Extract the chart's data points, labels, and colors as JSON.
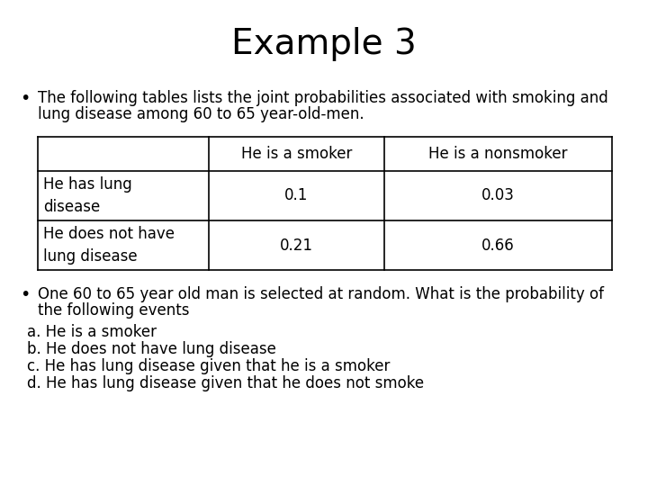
{
  "title": "Example 3",
  "title_fontsize": 28,
  "background_color": "#ffffff",
  "bullet1_line1": "The following tables lists the joint probabilities associated with smoking and",
  "bullet1_line2": "lung disease among 60 to 65 year-old-men.",
  "table": {
    "col_headers": [
      "",
      "He is a smoker",
      "He is a nonsmoker"
    ],
    "rows": [
      [
        "He has lung\ndisease",
        "0.1",
        "0.03"
      ],
      [
        "He does not have\nlung disease",
        "0.21",
        "0.66"
      ]
    ]
  },
  "bullet2_line1": "One 60 to 65 year old man is selected at random. What is the probability of",
  "bullet2_line2": "the following events",
  "items": [
    "a. He is a smoker",
    "b. He does not have lung disease",
    "c. He has lung disease given that he is a smoker",
    "d. He has lung disease given that he does not smoke"
  ],
  "text_fontsize": 12,
  "table_fontsize": 12,
  "item_fontsize": 12,
  "bullet_fontsize": 14,
  "font": "DejaVu Sans"
}
